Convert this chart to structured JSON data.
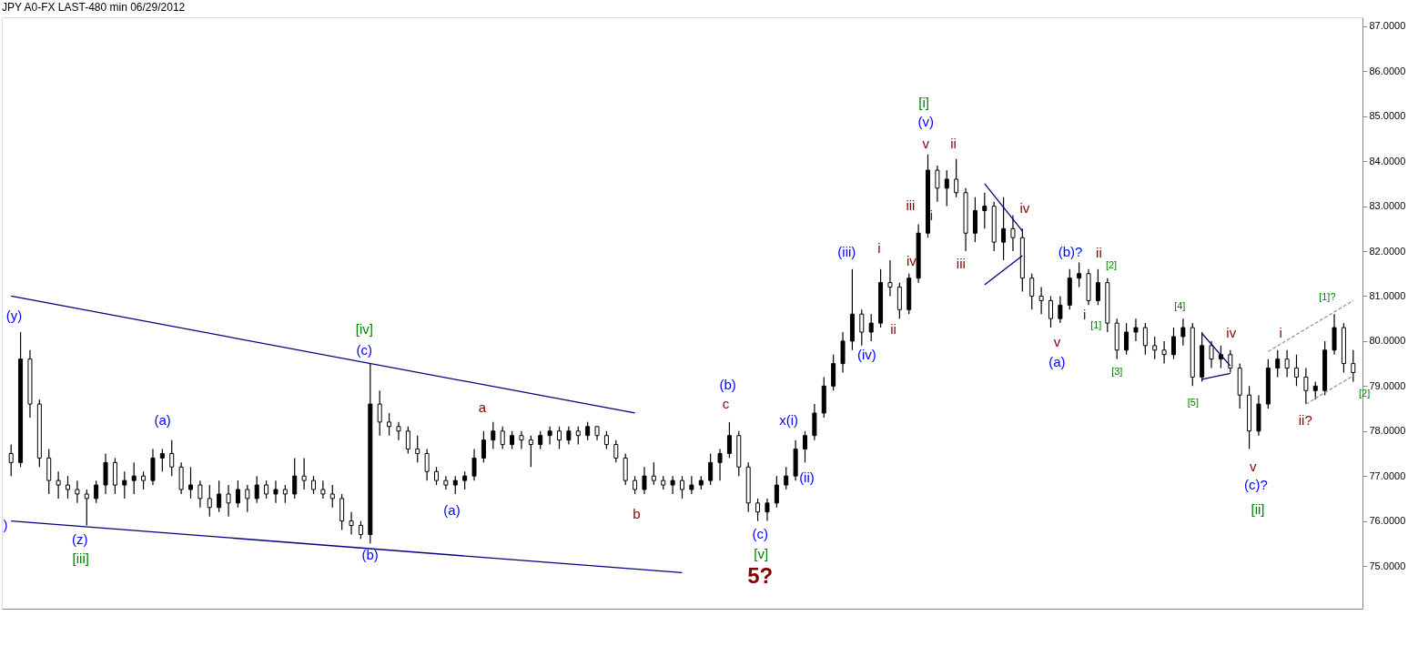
{
  "chart_data": {
    "type": "candlestick",
    "title": "JPY A0-FX LAST-480 min   06/29/2012",
    "categories": [
      null,
      null,
      null,
      null,
      null,
      null,
      null,
      null,
      null,
      null,
      null,
      null,
      null,
      null,
      null,
      null,
      null,
      null,
      null,
      null,
      null,
      null,
      null,
      null,
      null,
      null,
      null,
      null,
      null,
      null,
      null,
      null,
      null,
      null,
      null,
      null,
      null,
      null,
      null,
      null,
      null,
      null,
      null,
      null,
      null,
      null,
      null,
      null,
      null,
      null,
      null,
      null,
      null,
      null,
      null,
      null,
      null,
      null,
      null,
      null,
      null,
      null,
      null,
      null,
      null,
      null,
      null,
      null,
      null,
      null,
      null,
      null,
      null,
      null,
      null,
      null,
      null,
      null,
      null,
      null,
      null,
      null,
      null,
      null,
      null,
      null,
      null,
      null,
      null,
      null,
      null,
      null,
      null,
      null,
      null,
      null,
      null,
      null,
      null,
      null,
      null,
      null,
      null,
      null,
      null,
      null,
      null,
      null,
      null,
      null,
      null,
      null,
      null,
      null,
      null,
      null,
      null,
      null,
      null,
      null,
      null,
      null,
      null,
      null,
      null,
      null,
      null,
      null,
      null,
      null,
      null,
      null,
      null,
      null,
      null,
      null,
      null,
      null,
      null,
      null,
      null,
      null,
      null
    ],
    "ohlc": [
      [
        77.5,
        77.7,
        77.0,
        77.3
      ],
      [
        77.3,
        80.2,
        77.2,
        79.6
      ],
      [
        79.6,
        79.8,
        78.3,
        78.6
      ],
      [
        78.6,
        78.7,
        77.2,
        77.4
      ],
      [
        77.4,
        77.6,
        76.6,
        76.9
      ],
      [
        76.9,
        77.1,
        76.5,
        76.8
      ],
      [
        76.8,
        77.0,
        76.5,
        76.7
      ],
      [
        76.7,
        76.9,
        76.4,
        76.6
      ],
      [
        76.6,
        76.7,
        75.9,
        76.5
      ],
      [
        76.5,
        76.9,
        76.4,
        76.8
      ],
      [
        76.8,
        77.5,
        76.6,
        77.3
      ],
      [
        77.3,
        77.4,
        76.6,
        76.8
      ],
      [
        76.8,
        77.1,
        76.5,
        76.9
      ],
      [
        76.9,
        77.3,
        76.6,
        77.0
      ],
      [
        77.0,
        77.1,
        76.7,
        76.9
      ],
      [
        76.9,
        77.6,
        76.8,
        77.4
      ],
      [
        77.4,
        77.6,
        77.1,
        77.5
      ],
      [
        77.5,
        77.8,
        77.0,
        77.2
      ],
      [
        77.2,
        77.3,
        76.6,
        76.7
      ],
      [
        76.7,
        77.2,
        76.5,
        76.8
      ],
      [
        76.8,
        76.9,
        76.3,
        76.5
      ],
      [
        76.5,
        76.8,
        76.1,
        76.3
      ],
      [
        76.3,
        76.9,
        76.2,
        76.6
      ],
      [
        76.6,
        76.8,
        76.1,
        76.4
      ],
      [
        76.4,
        76.9,
        76.3,
        76.7
      ],
      [
        76.7,
        76.8,
        76.2,
        76.5
      ],
      [
        76.5,
        77.0,
        76.4,
        76.8
      ],
      [
        76.8,
        76.9,
        76.5,
        76.6
      ],
      [
        76.6,
        76.9,
        76.4,
        76.7
      ],
      [
        76.7,
        76.8,
        76.4,
        76.6
      ],
      [
        76.6,
        77.4,
        76.5,
        77.0
      ],
      [
        77.0,
        77.4,
        76.7,
        76.9
      ],
      [
        76.9,
        77.0,
        76.6,
        76.7
      ],
      [
        76.7,
        76.9,
        76.5,
        76.6
      ],
      [
        76.6,
        76.8,
        76.3,
        76.5
      ],
      [
        76.5,
        76.6,
        75.8,
        76.0
      ],
      [
        76.0,
        76.2,
        75.7,
        75.9
      ],
      [
        75.9,
        76.0,
        75.6,
        75.7
      ],
      [
        75.7,
        79.5,
        75.5,
        78.6
      ],
      [
        78.6,
        78.9,
        77.9,
        78.2
      ],
      [
        78.2,
        78.4,
        77.9,
        78.1
      ],
      [
        78.1,
        78.2,
        77.8,
        78.0
      ],
      [
        78.0,
        78.1,
        77.5,
        77.6
      ],
      [
        77.6,
        77.9,
        77.3,
        77.5
      ],
      [
        77.5,
        77.6,
        76.9,
        77.1
      ],
      [
        77.1,
        77.2,
        76.8,
        76.9
      ],
      [
        76.9,
        77.0,
        76.7,
        76.8
      ],
      [
        76.8,
        77.0,
        76.6,
        76.9
      ],
      [
        76.9,
        77.1,
        76.7,
        77.0
      ],
      [
        77.0,
        77.6,
        76.9,
        77.4
      ],
      [
        77.4,
        78.0,
        77.3,
        77.8
      ],
      [
        77.8,
        78.2,
        77.6,
        78.0
      ],
      [
        78.0,
        78.1,
        77.6,
        77.7
      ],
      [
        77.7,
        78.0,
        77.6,
        77.9
      ],
      [
        77.9,
        78.0,
        77.6,
        77.8
      ],
      [
        77.8,
        77.9,
        77.2,
        77.7
      ],
      [
        77.7,
        78.0,
        77.6,
        77.9
      ],
      [
        77.9,
        78.1,
        77.7,
        78.0
      ],
      [
        78.0,
        78.1,
        77.6,
        77.8
      ],
      [
        77.8,
        78.1,
        77.7,
        78.0
      ],
      [
        78.0,
        78.1,
        77.7,
        77.9
      ],
      [
        77.9,
        78.2,
        77.8,
        78.1
      ],
      [
        78.1,
        78.1,
        77.8,
        77.9
      ],
      [
        77.9,
        78.0,
        77.6,
        77.7
      ],
      [
        77.7,
        77.8,
        77.3,
        77.4
      ],
      [
        77.4,
        77.5,
        76.8,
        76.9
      ],
      [
        76.9,
        77.0,
        76.6,
        76.7
      ],
      [
        76.7,
        77.2,
        76.6,
        77.0
      ],
      [
        77.0,
        77.3,
        76.8,
        76.9
      ],
      [
        76.9,
        77.0,
        76.7,
        76.8
      ],
      [
        76.8,
        77.0,
        76.6,
        76.9
      ],
      [
        76.9,
        77.0,
        76.5,
        76.7
      ],
      [
        76.7,
        77.0,
        76.6,
        76.8
      ],
      [
        76.8,
        77.0,
        76.7,
        76.9
      ],
      [
        76.9,
        77.5,
        76.8,
        77.3
      ],
      [
        77.3,
        77.6,
        76.9,
        77.5
      ],
      [
        77.5,
        78.2,
        77.4,
        77.9
      ],
      [
        77.9,
        78.0,
        77.0,
        77.2
      ],
      [
        77.2,
        77.3,
        76.2,
        76.4
      ],
      [
        76.4,
        76.5,
        76.0,
        76.2
      ],
      [
        76.2,
        76.5,
        76.0,
        76.4
      ],
      [
        76.4,
        77.0,
        76.3,
        76.8
      ],
      [
        76.8,
        77.2,
        76.7,
        77.0
      ],
      [
        77.0,
        77.8,
        76.9,
        77.6
      ],
      [
        77.6,
        78.0,
        77.3,
        77.9
      ],
      [
        77.9,
        78.6,
        77.8,
        78.4
      ],
      [
        78.4,
        79.2,
        78.3,
        79.0
      ],
      [
        79.0,
        79.7,
        78.9,
        79.5
      ],
      [
        79.5,
        80.2,
        79.3,
        80.0
      ],
      [
        80.0,
        81.6,
        79.8,
        80.6
      ],
      [
        80.6,
        80.7,
        79.9,
        80.2
      ],
      [
        80.2,
        80.6,
        80.0,
        80.4
      ],
      [
        80.4,
        81.6,
        80.3,
        81.3
      ],
      [
        81.3,
        81.8,
        81.0,
        81.2
      ],
      [
        81.2,
        81.3,
        80.5,
        80.7
      ],
      [
        80.7,
        81.5,
        80.6,
        81.4
      ],
      [
        81.4,
        82.6,
        81.3,
        82.4
      ],
      [
        82.4,
        84.15,
        82.3,
        83.8
      ],
      [
        83.8,
        83.9,
        83.1,
        83.4
      ],
      [
        83.4,
        83.8,
        83.0,
        83.6
      ],
      [
        83.6,
        84.05,
        83.2,
        83.3
      ],
      [
        83.3,
        83.4,
        82.0,
        82.4
      ],
      [
        82.4,
        83.2,
        82.2,
        82.9
      ],
      [
        82.9,
        83.3,
        82.5,
        83.0
      ],
      [
        83.0,
        83.1,
        82.0,
        82.2
      ],
      [
        82.2,
        83.2,
        81.8,
        82.5
      ],
      [
        82.5,
        82.8,
        82.0,
        82.3
      ],
      [
        82.3,
        82.5,
        81.1,
        81.4
      ],
      [
        81.4,
        81.5,
        80.7,
        81.0
      ],
      [
        81.0,
        81.2,
        80.6,
        80.9
      ],
      [
        80.9,
        81.0,
        80.3,
        80.5
      ],
      [
        80.5,
        81.0,
        80.4,
        80.8
      ],
      [
        80.8,
        81.6,
        80.7,
        81.4
      ],
      [
        81.4,
        81.75,
        81.2,
        81.5
      ],
      [
        81.5,
        81.6,
        80.8,
        80.9
      ],
      [
        80.9,
        81.6,
        80.8,
        81.3
      ],
      [
        81.3,
        81.4,
        80.2,
        80.4
      ],
      [
        80.4,
        80.5,
        79.6,
        79.8
      ],
      [
        79.8,
        80.4,
        79.7,
        80.2
      ],
      [
        80.2,
        80.5,
        80.0,
        80.3
      ],
      [
        80.3,
        80.4,
        79.7,
        79.9
      ],
      [
        79.9,
        80.1,
        79.6,
        79.8
      ],
      [
        79.8,
        80.0,
        79.5,
        79.7
      ],
      [
        79.7,
        80.3,
        79.6,
        80.1
      ],
      [
        80.1,
        80.5,
        79.9,
        80.3
      ],
      [
        80.3,
        80.4,
        79.0,
        79.2
      ],
      [
        79.2,
        80.2,
        79.1,
        79.9
      ],
      [
        79.9,
        80.0,
        79.4,
        79.6
      ],
      [
        79.6,
        79.9,
        79.4,
        79.7
      ],
      [
        79.7,
        79.8,
        79.3,
        79.4
      ],
      [
        79.4,
        79.5,
        78.5,
        78.8
      ],
      [
        78.8,
        79.0,
        77.6,
        78.0
      ],
      [
        78.0,
        78.8,
        77.9,
        78.6
      ],
      [
        78.6,
        79.6,
        78.5,
        79.4
      ],
      [
        79.4,
        79.8,
        79.2,
        79.6
      ],
      [
        79.6,
        79.8,
        79.2,
        79.4
      ],
      [
        79.4,
        79.7,
        79.0,
        79.2
      ],
      [
        79.2,
        79.4,
        78.6,
        78.9
      ],
      [
        78.9,
        79.1,
        78.7,
        79.0
      ],
      [
        78.9,
        80.0,
        78.8,
        79.8
      ],
      [
        79.8,
        80.6,
        79.7,
        80.3
      ],
      [
        80.3,
        80.4,
        79.3,
        79.5
      ],
      [
        79.5,
        79.8,
        79.1,
        79.3
      ]
    ],
    "color": "#000000",
    "series": [
      {
        "type": "line",
        "color": "#00007f",
        "line_style": "solid",
        "values": [
          81.0,
          null,
          null,
          null,
          null,
          null,
          null,
          null,
          null,
          null,
          null,
          null,
          null,
          null,
          null,
          null,
          null,
          null,
          null,
          null,
          null,
          null,
          null,
          null,
          null,
          null,
          null,
          null,
          null,
          null,
          null,
          null,
          null,
          null,
          null,
          null,
          null,
          null,
          null,
          null,
          null,
          null,
          null,
          null,
          null,
          null,
          null,
          null,
          null,
          null,
          null,
          null,
          null,
          null,
          null,
          null,
          null,
          null,
          null,
          null,
          null,
          null,
          null,
          null,
          null,
          null,
          78.4,
          null,
          null,
          null,
          null,
          null,
          null,
          null,
          null,
          null,
          null,
          null,
          null,
          null,
          null,
          null,
          null,
          null,
          null,
          null,
          null,
          null,
          null,
          null,
          null,
          null,
          null,
          null,
          null,
          null,
          null,
          null,
          null,
          null,
          null,
          null,
          null,
          null,
          null,
          null,
          null,
          null,
          null,
          null,
          null,
          null,
          null,
          null,
          null,
          null,
          null,
          null,
          null,
          null,
          null,
          null,
          null,
          null,
          null,
          null,
          null,
          null,
          null,
          null,
          null,
          null,
          null,
          null,
          null,
          null,
          null,
          null,
          null,
          null,
          null,
          null,
          null
        ]
      },
      {
        "type": "line",
        "color": "#00007f",
        "line_style": "solid",
        "values": [
          76.0,
          null,
          null,
          null,
          null,
          null,
          null,
          null,
          null,
          null,
          null,
          null,
          null,
          null,
          null,
          null,
          null,
          null,
          null,
          null,
          null,
          null,
          null,
          null,
          null,
          null,
          null,
          null,
          null,
          null,
          null,
          null,
          null,
          null,
          null,
          null,
          null,
          null,
          null,
          null,
          null,
          null,
          null,
          null,
          null,
          null,
          null,
          null,
          null,
          null,
          null,
          null,
          null,
          null,
          null,
          null,
          null,
          null,
          null,
          null,
          null,
          null,
          null,
          null,
          null,
          null,
          null,
          null,
          null,
          null,
          null,
          74.85,
          null,
          null,
          null,
          null,
          null,
          null,
          null,
          null,
          null,
          null,
          null,
          null,
          null,
          null,
          null,
          null,
          null,
          null,
          null,
          null,
          null,
          null,
          null,
          null,
          null,
          null,
          null,
          null,
          null,
          null,
          null,
          null,
          null,
          null,
          null,
          null,
          null,
          null,
          null,
          null,
          null,
          null,
          null,
          null,
          null,
          null,
          null,
          null,
          null,
          null,
          null,
          null,
          null,
          null,
          null,
          null,
          null,
          null,
          null,
          null,
          null,
          null,
          null,
          null,
          null,
          null,
          null,
          null,
          null,
          null,
          null
        ]
      },
      {
        "type": "line",
        "color": "#00007f",
        "line_style": "solid",
        "values": [
          null,
          null,
          null,
          null,
          null,
          null,
          null,
          null,
          null,
          null,
          null,
          null,
          null,
          null,
          null,
          null,
          null,
          null,
          null,
          null,
          null,
          null,
          null,
          null,
          null,
          null,
          null,
          null,
          null,
          null,
          null,
          null,
          null,
          null,
          null,
          null,
          null,
          null,
          null,
          null,
          null,
          null,
          null,
          null,
          null,
          null,
          null,
          null,
          null,
          null,
          null,
          null,
          null,
          null,
          null,
          null,
          null,
          null,
          null,
          null,
          null,
          null,
          null,
          null,
          null,
          null,
          null,
          null,
          null,
          null,
          null,
          null,
          null,
          null,
          null,
          null,
          null,
          null,
          null,
          null,
          null,
          null,
          null,
          null,
          null,
          null,
          null,
          null,
          null,
          null,
          null,
          null,
          null,
          null,
          null,
          null,
          null,
          null,
          null,
          null,
          null,
          null,
          null,
          83.5,
          null,
          null,
          null,
          82.45,
          null,
          null,
          null,
          null,
          null,
          null,
          null,
          null,
          null,
          null,
          null,
          null,
          null,
          null,
          null,
          null,
          null,
          null,
          null,
          null,
          null,
          null,
          null,
          null,
          null,
          null,
          null,
          null,
          null,
          null,
          null,
          null,
          null,
          null,
          null
        ]
      },
      {
        "type": "line",
        "color": "#00007f",
        "line_style": "solid",
        "values": [
          null,
          null,
          null,
          null,
          null,
          null,
          null,
          null,
          null,
          null,
          null,
          null,
          null,
          null,
          null,
          null,
          null,
          null,
          null,
          null,
          null,
          null,
          null,
          null,
          null,
          null,
          null,
          null,
          null,
          null,
          null,
          null,
          null,
          null,
          null,
          null,
          null,
          null,
          null,
          null,
          null,
          null,
          null,
          null,
          null,
          null,
          null,
          null,
          null,
          null,
          null,
          null,
          null,
          null,
          null,
          null,
          null,
          null,
          null,
          null,
          null,
          null,
          null,
          null,
          null,
          null,
          null,
          null,
          null,
          null,
          null,
          null,
          null,
          null,
          null,
          null,
          null,
          null,
          null,
          null,
          null,
          null,
          null,
          null,
          null,
          null,
          null,
          null,
          null,
          null,
          null,
          null,
          null,
          null,
          null,
          null,
          null,
          null,
          null,
          null,
          null,
          null,
          null,
          81.25,
          null,
          null,
          null,
          81.9,
          null,
          null,
          null,
          null,
          null,
          null,
          null,
          null,
          null,
          null,
          null,
          null,
          null,
          null,
          null,
          null,
          null,
          null,
          null,
          null,
          null,
          null,
          null,
          null,
          null,
          null,
          null,
          null,
          null,
          null,
          null,
          null,
          null,
          null,
          null
        ]
      },
      {
        "type": "line",
        "color": "#00007f",
        "line_style": "solid",
        "values": [
          null,
          null,
          null,
          null,
          null,
          null,
          null,
          null,
          null,
          null,
          null,
          null,
          null,
          null,
          null,
          null,
          null,
          null,
          null,
          null,
          null,
          null,
          null,
          null,
          null,
          null,
          null,
          null,
          null,
          null,
          null,
          null,
          null,
          null,
          null,
          null,
          null,
          null,
          null,
          null,
          null,
          null,
          null,
          null,
          null,
          null,
          null,
          null,
          null,
          null,
          null,
          null,
          null,
          null,
          null,
          null,
          null,
          null,
          null,
          null,
          null,
          null,
          null,
          null,
          null,
          null,
          null,
          null,
          null,
          null,
          null,
          null,
          null,
          null,
          null,
          null,
          null,
          null,
          null,
          null,
          null,
          null,
          null,
          null,
          null,
          null,
          null,
          null,
          null,
          null,
          null,
          null,
          null,
          null,
          null,
          null,
          null,
          null,
          null,
          null,
          null,
          null,
          null,
          null,
          null,
          null,
          null,
          null,
          null,
          null,
          null,
          null,
          null,
          null,
          null,
          null,
          null,
          null,
          null,
          null,
          null,
          null,
          null,
          null,
          null,
          null,
          80.17,
          null,
          null,
          79.45,
          null,
          null,
          null,
          null,
          null,
          null,
          null,
          null,
          null,
          null,
          null,
          null,
          null
        ]
      },
      {
        "type": "line",
        "color": "#00007f",
        "line_style": "solid",
        "values": [
          null,
          null,
          null,
          null,
          null,
          null,
          null,
          null,
          null,
          null,
          null,
          null,
          null,
          null,
          null,
          null,
          null,
          null,
          null,
          null,
          null,
          null,
          null,
          null,
          null,
          null,
          null,
          null,
          null,
          null,
          null,
          null,
          null,
          null,
          null,
          null,
          null,
          null,
          null,
          null,
          null,
          null,
          null,
          null,
          null,
          null,
          null,
          null,
          null,
          null,
          null,
          null,
          null,
          null,
          null,
          null,
          null,
          null,
          null,
          null,
          null,
          null,
          null,
          null,
          null,
          null,
          null,
          null,
          null,
          null,
          null,
          null,
          null,
          null,
          null,
          null,
          null,
          null,
          null,
          null,
          null,
          null,
          null,
          null,
          null,
          null,
          null,
          null,
          null,
          null,
          null,
          null,
          null,
          null,
          null,
          null,
          null,
          null,
          null,
          null,
          null,
          null,
          null,
          null,
          null,
          null,
          null,
          null,
          null,
          null,
          null,
          null,
          null,
          null,
          null,
          null,
          null,
          null,
          null,
          null,
          null,
          null,
          null,
          null,
          null,
          null,
          79.15,
          null,
          null,
          79.28,
          null,
          null,
          null,
          null,
          null,
          null,
          null,
          null,
          null,
          null,
          null,
          null,
          null
        ]
      },
      {
        "type": "line",
        "color": "#999999",
        "line_style": "dashed",
        "values": [
          null,
          null,
          null,
          null,
          null,
          null,
          null,
          null,
          null,
          null,
          null,
          null,
          null,
          null,
          null,
          null,
          null,
          null,
          null,
          null,
          null,
          null,
          null,
          null,
          null,
          null,
          null,
          null,
          null,
          null,
          null,
          null,
          null,
          null,
          null,
          null,
          null,
          null,
          null,
          null,
          null,
          null,
          null,
          null,
          null,
          null,
          null,
          null,
          null,
          null,
          null,
          null,
          null,
          null,
          null,
          null,
          null,
          null,
          null,
          null,
          null,
          null,
          null,
          null,
          null,
          null,
          null,
          null,
          null,
          null,
          null,
          null,
          null,
          null,
          null,
          null,
          null,
          null,
          null,
          null,
          null,
          null,
          null,
          null,
          null,
          null,
          null,
          null,
          null,
          null,
          null,
          null,
          null,
          null,
          null,
          null,
          null,
          null,
          null,
          null,
          null,
          null,
          null,
          null,
          null,
          null,
          null,
          null,
          null,
          null,
          null,
          null,
          null,
          null,
          null,
          null,
          null,
          null,
          null,
          null,
          null,
          null,
          null,
          null,
          null,
          null,
          null,
          null,
          null,
          null,
          null,
          null,
          null,
          79.77,
          null,
          null,
          null,
          null,
          null,
          null,
          null,
          null,
          80.9
        ]
      },
      {
        "type": "line",
        "color": "#999999",
        "line_style": "dashed",
        "values": [
          null,
          null,
          null,
          null,
          null,
          null,
          null,
          null,
          null,
          null,
          null,
          null,
          null,
          null,
          null,
          null,
          null,
          null,
          null,
          null,
          null,
          null,
          null,
          null,
          null,
          null,
          null,
          null,
          null,
          null,
          null,
          null,
          null,
          null,
          null,
          null,
          null,
          null,
          null,
          null,
          null,
          null,
          null,
          null,
          null,
          null,
          null,
          null,
          null,
          null,
          null,
          null,
          null,
          null,
          null,
          null,
          null,
          null,
          null,
          null,
          null,
          null,
          null,
          null,
          null,
          null,
          null,
          null,
          null,
          null,
          null,
          null,
          null,
          null,
          null,
          null,
          null,
          null,
          null,
          null,
          null,
          null,
          null,
          null,
          null,
          null,
          null,
          null,
          null,
          null,
          null,
          null,
          null,
          null,
          null,
          null,
          null,
          null,
          null,
          null,
          null,
          null,
          null,
          null,
          null,
          null,
          null,
          null,
          null,
          null,
          null,
          null,
          null,
          null,
          null,
          null,
          null,
          null,
          null,
          null,
          null,
          null,
          null,
          null,
          null,
          null,
          null,
          null,
          null,
          null,
          null,
          null,
          null,
          null,
          null,
          null,
          null,
          78.6,
          null,
          null,
          null,
          null,
          79.23
        ]
      }
    ],
    "ylim": [
      74.05,
      87.2
    ],
    "yticks": [
      {
        "value": 75,
        "label": "75.0000"
      },
      {
        "value": 76,
        "label": "76.0000"
      },
      {
        "value": 77,
        "label": "77.0000"
      },
      {
        "value": 78,
        "label": "78.0000"
      },
      {
        "value": 79,
        "label": "79.0000"
      },
      {
        "value": 80,
        "label": "80.0000"
      },
      {
        "value": 81,
        "label": "81.0000"
      },
      {
        "value": 82,
        "label": "82.0000"
      },
      {
        "value": 83,
        "label": "83.0000"
      },
      {
        "value": 84,
        "label": "84.0000"
      },
      {
        "value": 85,
        "label": "85.0000"
      },
      {
        "value": 86,
        "label": "86.0000"
      },
      {
        "value": 87,
        "label": "87.0000"
      }
    ],
    "tick_labels": "y",
    "grid": false,
    "annotations": [
      "(y)",
      ")",
      "(z)",
      "[iii]",
      "(a)",
      "[iv]",
      "(c)",
      "(b)",
      "(a)",
      "a",
      "b",
      "(b)",
      "c",
      "(c)",
      "[v]",
      "5?",
      "x(i)",
      "(ii)",
      "(iii)",
      "(iv)",
      "i",
      "ii",
      "iv",
      "iii",
      "i",
      "v",
      "(v)",
      "[i]",
      "ii",
      "iii",
      "iv",
      "(b)?",
      "ii",
      "[2]",
      "i",
      "[1]",
      "v",
      "(a)",
      "[3]",
      "[4]",
      "[5]",
      "iv",
      "i",
      "ii?",
      "[1]?",
      "[2]",
      "v",
      "(c)?",
      "[ii]"
    ]
  }
}
